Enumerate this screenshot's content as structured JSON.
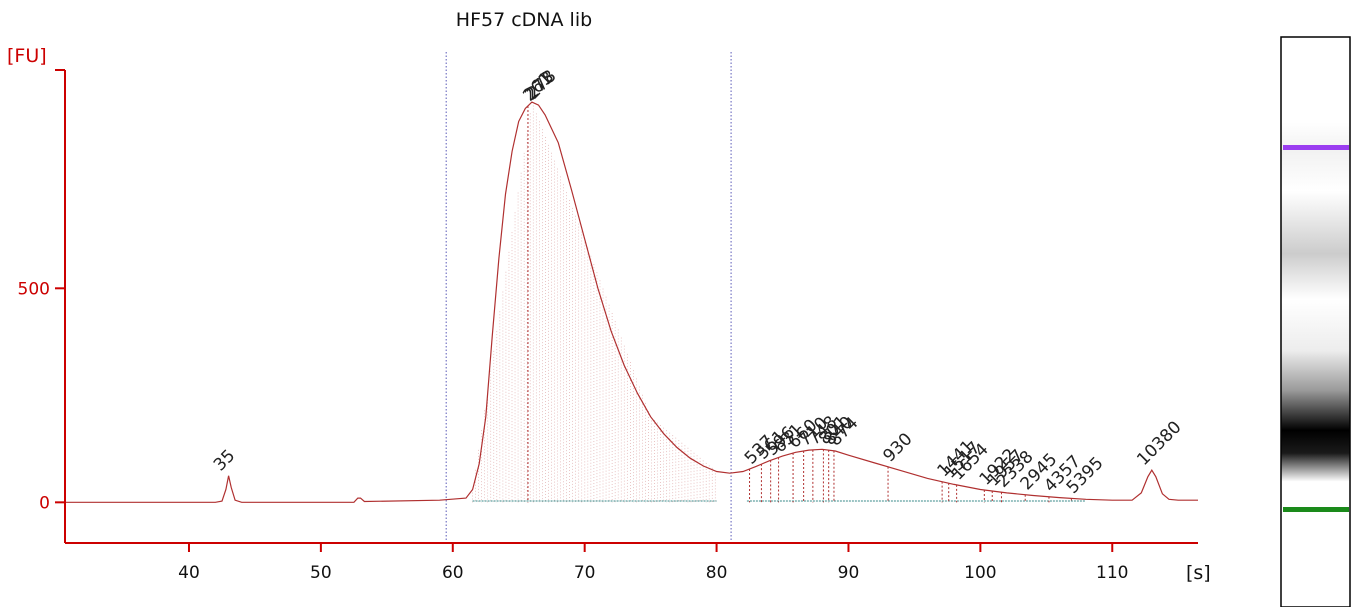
{
  "chart_data": {
    "type": "line",
    "title": "HF57 cDNA lib",
    "ylabel": "[FU]",
    "xlabel": "[s]",
    "xlim": [
      30.6,
      116.5
    ],
    "ylim": [
      -95,
      1010
    ],
    "x_ticks": [
      40,
      50,
      60,
      70,
      80,
      90,
      100,
      110
    ],
    "y_ticks": [
      0,
      500
    ],
    "grid": false,
    "colors": {
      "axis": "#cc0000",
      "trace": "#b03030",
      "baseline": "#3a8a8a",
      "region_marker": "#5a5ab8",
      "lower_marker": "#1a8a1a",
      "upper_marker": "#9b3ef0",
      "label": "#222222"
    },
    "region_markers_x": [
      59.5,
      81.1
    ],
    "series": [
      {
        "x": [
          30.6,
          42.0,
          42.5,
          42.8,
          43.0,
          43.2,
          43.5,
          44.0,
          52.5,
          52.8,
          53.0,
          53.3,
          59.0,
          61.0,
          61.5,
          62.0,
          62.5,
          63.0,
          63.5,
          64.0,
          64.5,
          65.0,
          65.5,
          66.0,
          66.5,
          67.0,
          68.0,
          69.0,
          70.0,
          71.0,
          72.0,
          73.0,
          74.0,
          75.0,
          76.0,
          77.0,
          78.0,
          79.0,
          80.0,
          81.0,
          82.0,
          83.0,
          84.0,
          85.0,
          86.0,
          87.0,
          88.0,
          89.0,
          90.0,
          92.0,
          94.0,
          96.0,
          98.0,
          100.0,
          102.0,
          104.0,
          106.0,
          108.0,
          110.0,
          111.5,
          112.2,
          112.7,
          113.0,
          113.3,
          113.8,
          114.3,
          115.0,
          116.5
        ],
        "y": [
          0,
          0,
          3,
          30,
          62,
          35,
          5,
          0,
          0,
          10,
          10,
          2,
          5,
          10,
          30,
          90,
          200,
          390,
          570,
          720,
          820,
          890,
          920,
          935,
          928,
          905,
          840,
          730,
          615,
          500,
          400,
          320,
          255,
          200,
          160,
          128,
          103,
          85,
          72,
          68,
          72,
          84,
          97,
          108,
          117,
          122,
          124,
          120,
          110,
          92,
          74,
          56,
          42,
          30,
          22,
          16,
          11,
          7,
          5,
          5,
          22,
          60,
          75,
          60,
          20,
          7,
          5,
          5
        ]
      }
    ],
    "fills": [
      {
        "x": [
          61.5,
          66.0,
          70.0,
          75.0,
          80.0
        ],
        "y": [
          30,
          935,
          615,
          200,
          72
        ]
      }
    ],
    "markers": [
      {
        "label": "35",
        "x": 43.0,
        "y": 62,
        "color": "#1a8a1a"
      },
      {
        "label": "10380",
        "x": 113.0,
        "y": 75,
        "color": "#9b3ef0"
      }
    ],
    "peaks": [
      {
        "x": 65.7,
        "labels": [
          "261",
          "273",
          "278"
        ]
      },
      {
        "x": 82.5,
        "labels": [
          "537"
        ]
      },
      {
        "x": 83.4,
        "labels": [
          "561"
        ]
      },
      {
        "x": 84.1,
        "labels": [
          "596"
        ]
      },
      {
        "x": 84.7,
        "labels": [
          "631"
        ]
      },
      {
        "x": 85.8,
        "labels": [
          "660"
        ]
      },
      {
        "x": 86.6,
        "labels": [
          "710"
        ]
      },
      {
        "x": 87.3,
        "labels": [
          "748"
        ]
      },
      {
        "x": 88.1,
        "labels": [
          "801"
        ]
      },
      {
        "x": 88.5,
        "labels": [
          "840"
        ]
      },
      {
        "x": 88.9,
        "labels": [
          "874"
        ]
      },
      {
        "x": 93.0,
        "labels": [
          "930"
        ]
      },
      {
        "x": 97.1,
        "labels": [
          "1441"
        ]
      },
      {
        "x": 97.6,
        "labels": [
          "1517"
        ]
      },
      {
        "x": 98.2,
        "labels": [
          "1654"
        ]
      },
      {
        "x": 100.3,
        "labels": [
          "1922"
        ]
      },
      {
        "x": 100.9,
        "labels": [
          "1957"
        ]
      },
      {
        "x": 101.6,
        "labels": [
          "2338"
        ]
      },
      {
        "x": 103.4,
        "labels": [
          "2945"
        ]
      },
      {
        "x": 105.2,
        "labels": [
          "4357"
        ]
      },
      {
        "x": 106.9,
        "labels": [
          "5395"
        ]
      }
    ]
  },
  "gel": {
    "upper_band_color": "#9b3ef0",
    "lower_band_color": "#1a8a1a"
  }
}
